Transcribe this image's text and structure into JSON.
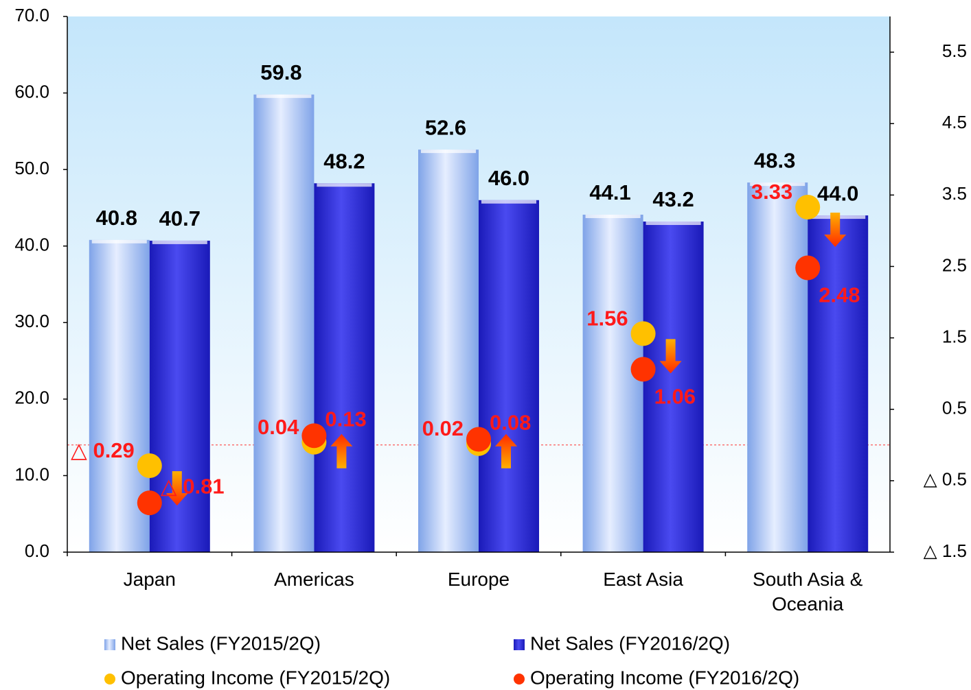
{
  "chart_data": {
    "type": "bar",
    "categories": [
      "Japan",
      "Americas",
      "Europe",
      "East Asia",
      "South Asia & Oceania"
    ],
    "ylim": [
      0,
      70
    ],
    "yticks": [
      {
        "value": 0,
        "label": "0.0"
      },
      {
        "value": 10,
        "label": "10.0"
      },
      {
        "value": 20,
        "label": "20.0"
      },
      {
        "value": 30,
        "label": "30.0"
      },
      {
        "value": 40,
        "label": "40.0"
      },
      {
        "value": 50,
        "label": "50.0"
      },
      {
        "value": 60,
        "label": "60.0"
      },
      {
        "value": 70,
        "label": "70.0"
      }
    ],
    "y2lim": [
      -1.5,
      6.0
    ],
    "y2ticks": [
      {
        "value": -1.5,
        "label": "△ 1.5"
      },
      {
        "value": -0.5,
        "label": "△ 0.5"
      },
      0.5,
      1.5,
      2.5,
      3.5,
      4.5,
      5.5
    ],
    "series": [
      {
        "name": "Net Sales (FY2015/2Q)",
        "type": "bar",
        "color": "#a9c4f5",
        "values": [
          40.8,
          59.8,
          52.6,
          44.1,
          48.3
        ],
        "value_labels": [
          "40.8",
          "59.8",
          "52.6",
          "44.1",
          "48.3"
        ]
      },
      {
        "name": "Net Sales (FY2016/2Q)",
        "type": "bar",
        "color": "#2f2fd8",
        "values": [
          40.7,
          48.2,
          46.0,
          43.2,
          44.0
        ],
        "value_labels": [
          "40.7",
          "48.2",
          "46.0",
          "43.2",
          "44.0"
        ]
      },
      {
        "name": "Operating Income (FY2015/2Q)",
        "type": "scatter",
        "axis": "y2",
        "color": "#ffc000",
        "values": [
          -0.29,
          0.04,
          0.02,
          1.56,
          3.33
        ],
        "value_labels": [
          "△ 0.29",
          "0.04",
          "0.02",
          "1.56",
          "3.33"
        ]
      },
      {
        "name": "Operating Income (FY2016/2Q)",
        "type": "scatter",
        "axis": "y2",
        "color": "#ff3300",
        "values": [
          -0.81,
          0.13,
          0.08,
          1.06,
          2.48
        ],
        "value_labels": [
          "△ 0.81",
          "0.13",
          "0.08",
          "1.06",
          "2.48"
        ]
      }
    ]
  }
}
